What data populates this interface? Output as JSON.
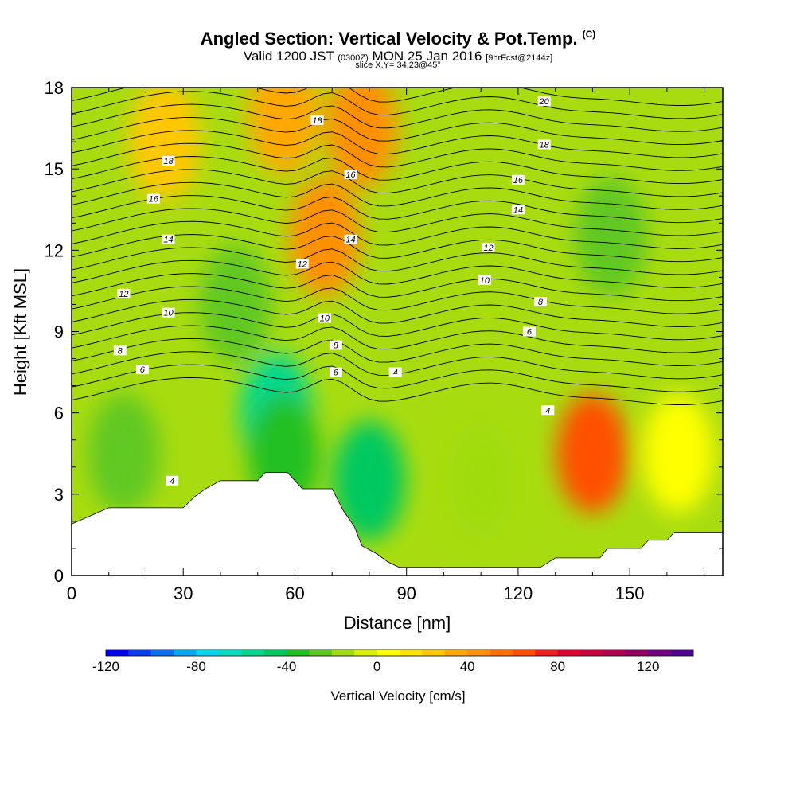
{
  "title": "Angled Section: Vertical Velocity & Pot.Temp.",
  "title_tag": "(C)",
  "subtitle_main": "Valid 1200 JST",
  "subtitle_zulu": "(0300Z)",
  "subtitle_date": "MON 25 Jan 2016",
  "subtitle_fcst": "[9hrFcst@2144z]",
  "slice": "slice X,Y= 34,23@45°",
  "chart_data": {
    "type": "heatmap",
    "title": "Angled Section: Vertical Velocity & Pot.Temp.",
    "xlabel": "Distance [nm]",
    "ylabel": "Height [Kft MSL]",
    "xlim": [
      0,
      175
    ],
    "ylim": [
      0,
      18
    ],
    "xticks": [
      "0",
      "30",
      "60",
      "90",
      "120",
      "150"
    ],
    "yticks": [
      "0",
      "3",
      "6",
      "9",
      "12",
      "15",
      "18"
    ],
    "colorbar": {
      "label": "Vertical Velocity [cm/s]",
      "tick_labels": [
        "-120",
        "-80",
        "-40",
        "0",
        "40",
        "80",
        "120"
      ],
      "tick_values": [
        -120,
        -80,
        -40,
        0,
        40,
        80,
        120
      ],
      "range": [
        -120,
        140
      ],
      "colors": [
        "#0000f0",
        "#0a3cf0",
        "#0a70f0",
        "#00a8f0",
        "#00d8f0",
        "#00e0c0",
        "#00d890",
        "#00c860",
        "#20c020",
        "#60c820",
        "#a0dc10",
        "#d8f000",
        "#ffff00",
        "#ffe000",
        "#ffc800",
        "#ffa800",
        "#ff9000",
        "#ff7000",
        "#ff5000",
        "#f02020",
        "#e00030",
        "#c80040",
        "#b00050",
        "#900060",
        "#700080",
        "#500090"
      ]
    },
    "terrain_profile": [
      [
        0,
        1.9
      ],
      [
        5,
        2.2
      ],
      [
        10,
        2.5
      ],
      [
        30,
        2.5
      ],
      [
        33,
        2.9
      ],
      [
        36,
        3.2
      ],
      [
        40,
        3.5
      ],
      [
        50,
        3.5
      ],
      [
        52,
        3.8
      ],
      [
        58,
        3.8
      ],
      [
        60,
        3.5
      ],
      [
        62,
        3.2
      ],
      [
        70,
        3.2
      ],
      [
        73,
        2.4
      ],
      [
        76,
        1.8
      ],
      [
        78,
        1.1
      ],
      [
        82,
        0.8
      ],
      [
        85,
        0.5
      ],
      [
        88,
        0.3
      ],
      [
        92,
        0.3
      ],
      [
        126,
        0.3
      ],
      [
        130,
        0.65
      ],
      [
        142,
        0.65
      ],
      [
        144,
        1.0
      ],
      [
        153,
        1.0
      ],
      [
        155,
        1.3
      ],
      [
        160,
        1.3
      ],
      [
        162,
        1.6
      ],
      [
        175,
        1.6
      ]
    ],
    "cells": [
      {
        "x": 14,
        "y": 4.5,
        "value": -30
      },
      {
        "x": 25,
        "y": 16,
        "value": 20
      },
      {
        "x": 44,
        "y": 10,
        "value": -30
      },
      {
        "x": 55,
        "y": 6,
        "value": -55
      },
      {
        "x": 57,
        "y": 4.5,
        "value": -40
      },
      {
        "x": 57,
        "y": 17,
        "value": 35
      },
      {
        "x": 68,
        "y": 12.5,
        "value": 40
      },
      {
        "x": 78,
        "y": 16.5,
        "value": 45
      },
      {
        "x": 80,
        "y": 3.5,
        "value": -50
      },
      {
        "x": 110,
        "y": 3.5,
        "value": -20
      },
      {
        "x": 140,
        "y": 4.5,
        "value": 60
      },
      {
        "x": 145,
        "y": 12.5,
        "value": -25
      },
      {
        "x": 163,
        "y": 4.5,
        "value": 5
      }
    ],
    "contour_labels": [
      {
        "text": "18",
        "x": 26,
        "y": 15.3
      },
      {
        "text": "16",
        "x": 22,
        "y": 13.9
      },
      {
        "text": "14",
        "x": 26,
        "y": 12.4
      },
      {
        "text": "12",
        "x": 14,
        "y": 10.4
      },
      {
        "text": "10",
        "x": 26,
        "y": 9.7
      },
      {
        "text": "8",
        "x": 13,
        "y": 8.3
      },
      {
        "text": "6",
        "x": 19,
        "y": 7.6
      },
      {
        "text": "4",
        "x": 27,
        "y": 3.5
      },
      {
        "text": "18",
        "x": 66,
        "y": 16.8
      },
      {
        "text": "16",
        "x": 75,
        "y": 14.8
      },
      {
        "text": "14",
        "x": 75,
        "y": 12.4
      },
      {
        "text": "12",
        "x": 62,
        "y": 11.5
      },
      {
        "text": "10",
        "x": 68,
        "y": 9.5
      },
      {
        "text": "8",
        "x": 71,
        "y": 8.5
      },
      {
        "text": "6",
        "x": 71,
        "y": 7.5
      },
      {
        "text": "4",
        "x": 87,
        "y": 7.5
      },
      {
        "text": "20",
        "x": 127,
        "y": 17.5
      },
      {
        "text": "18",
        "x": 127,
        "y": 15.9
      },
      {
        "text": "16",
        "x": 120,
        "y": 14.6
      },
      {
        "text": "14",
        "x": 120,
        "y": 13.5
      },
      {
        "text": "12",
        "x": 112,
        "y": 12.1
      },
      {
        "text": "10",
        "x": 111,
        "y": 10.9
      },
      {
        "text": "8",
        "x": 126,
        "y": 10.1
      },
      {
        "text": "6",
        "x": 123,
        "y": 9.0
      },
      {
        "text": "4",
        "x": 128,
        "y": 6.1
      }
    ]
  }
}
